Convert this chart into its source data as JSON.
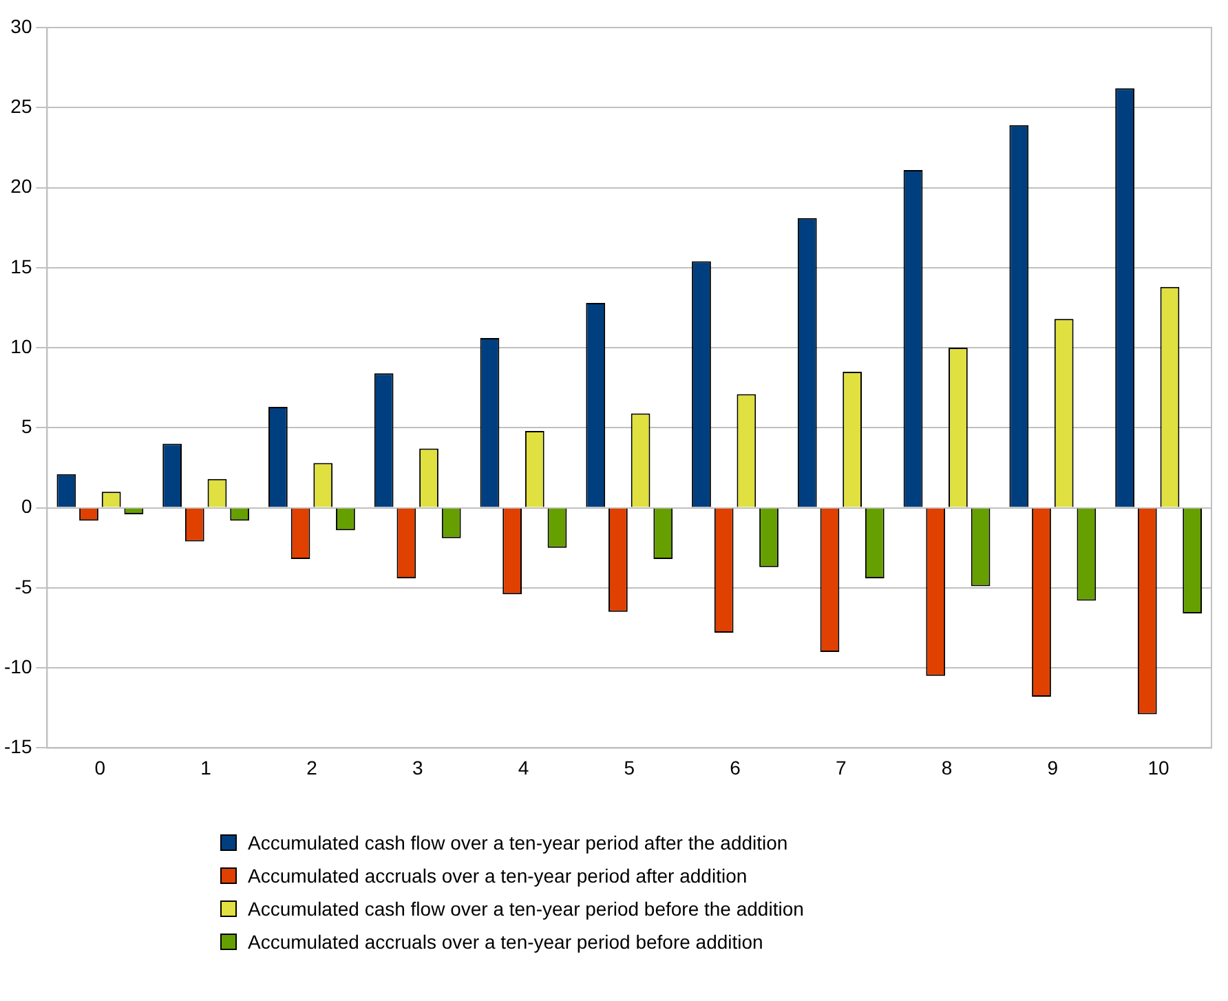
{
  "chart_data": {
    "type": "bar",
    "categories": [
      "0",
      "1",
      "2",
      "3",
      "4",
      "5",
      "6",
      "7",
      "8",
      "9",
      "10"
    ],
    "series": [
      {
        "name": "Accumulated cash flow over a ten-year period after the addition",
        "color": "#003f7f",
        "values": [
          2.1,
          4.0,
          6.3,
          8.4,
          10.6,
          12.8,
          15.4,
          18.1,
          21.1,
          23.9,
          26.2
        ]
      },
      {
        "name": "Accumulated accruals over a ten-year period after addition",
        "color": "#e04000",
        "values": [
          -0.8,
          -2.1,
          -3.2,
          -4.4,
          -5.4,
          -6.5,
          -7.8,
          -9.0,
          -10.5,
          -11.8,
          -12.9
        ]
      },
      {
        "name": "Accumulated cash flow over a ten-year period before the addition",
        "color": "#e0e040",
        "values": [
          1.0,
          1.8,
          2.8,
          3.7,
          4.8,
          5.9,
          7.1,
          8.5,
          10.0,
          11.8,
          13.8
        ]
      },
      {
        "name": "Accumulated accruals over a ten-year period before addition",
        "color": "#66a000",
        "values": [
          -0.4,
          -0.8,
          -1.4,
          -1.9,
          -2.5,
          -3.2,
          -3.7,
          -4.4,
          -4.9,
          -5.8,
          -6.6
        ]
      }
    ],
    "ylim": [
      -15,
      30
    ],
    "yticks": [
      -15,
      -10,
      -5,
      0,
      5,
      10,
      15,
      20,
      25,
      30
    ],
    "grid": "y",
    "legend": "bottom"
  }
}
